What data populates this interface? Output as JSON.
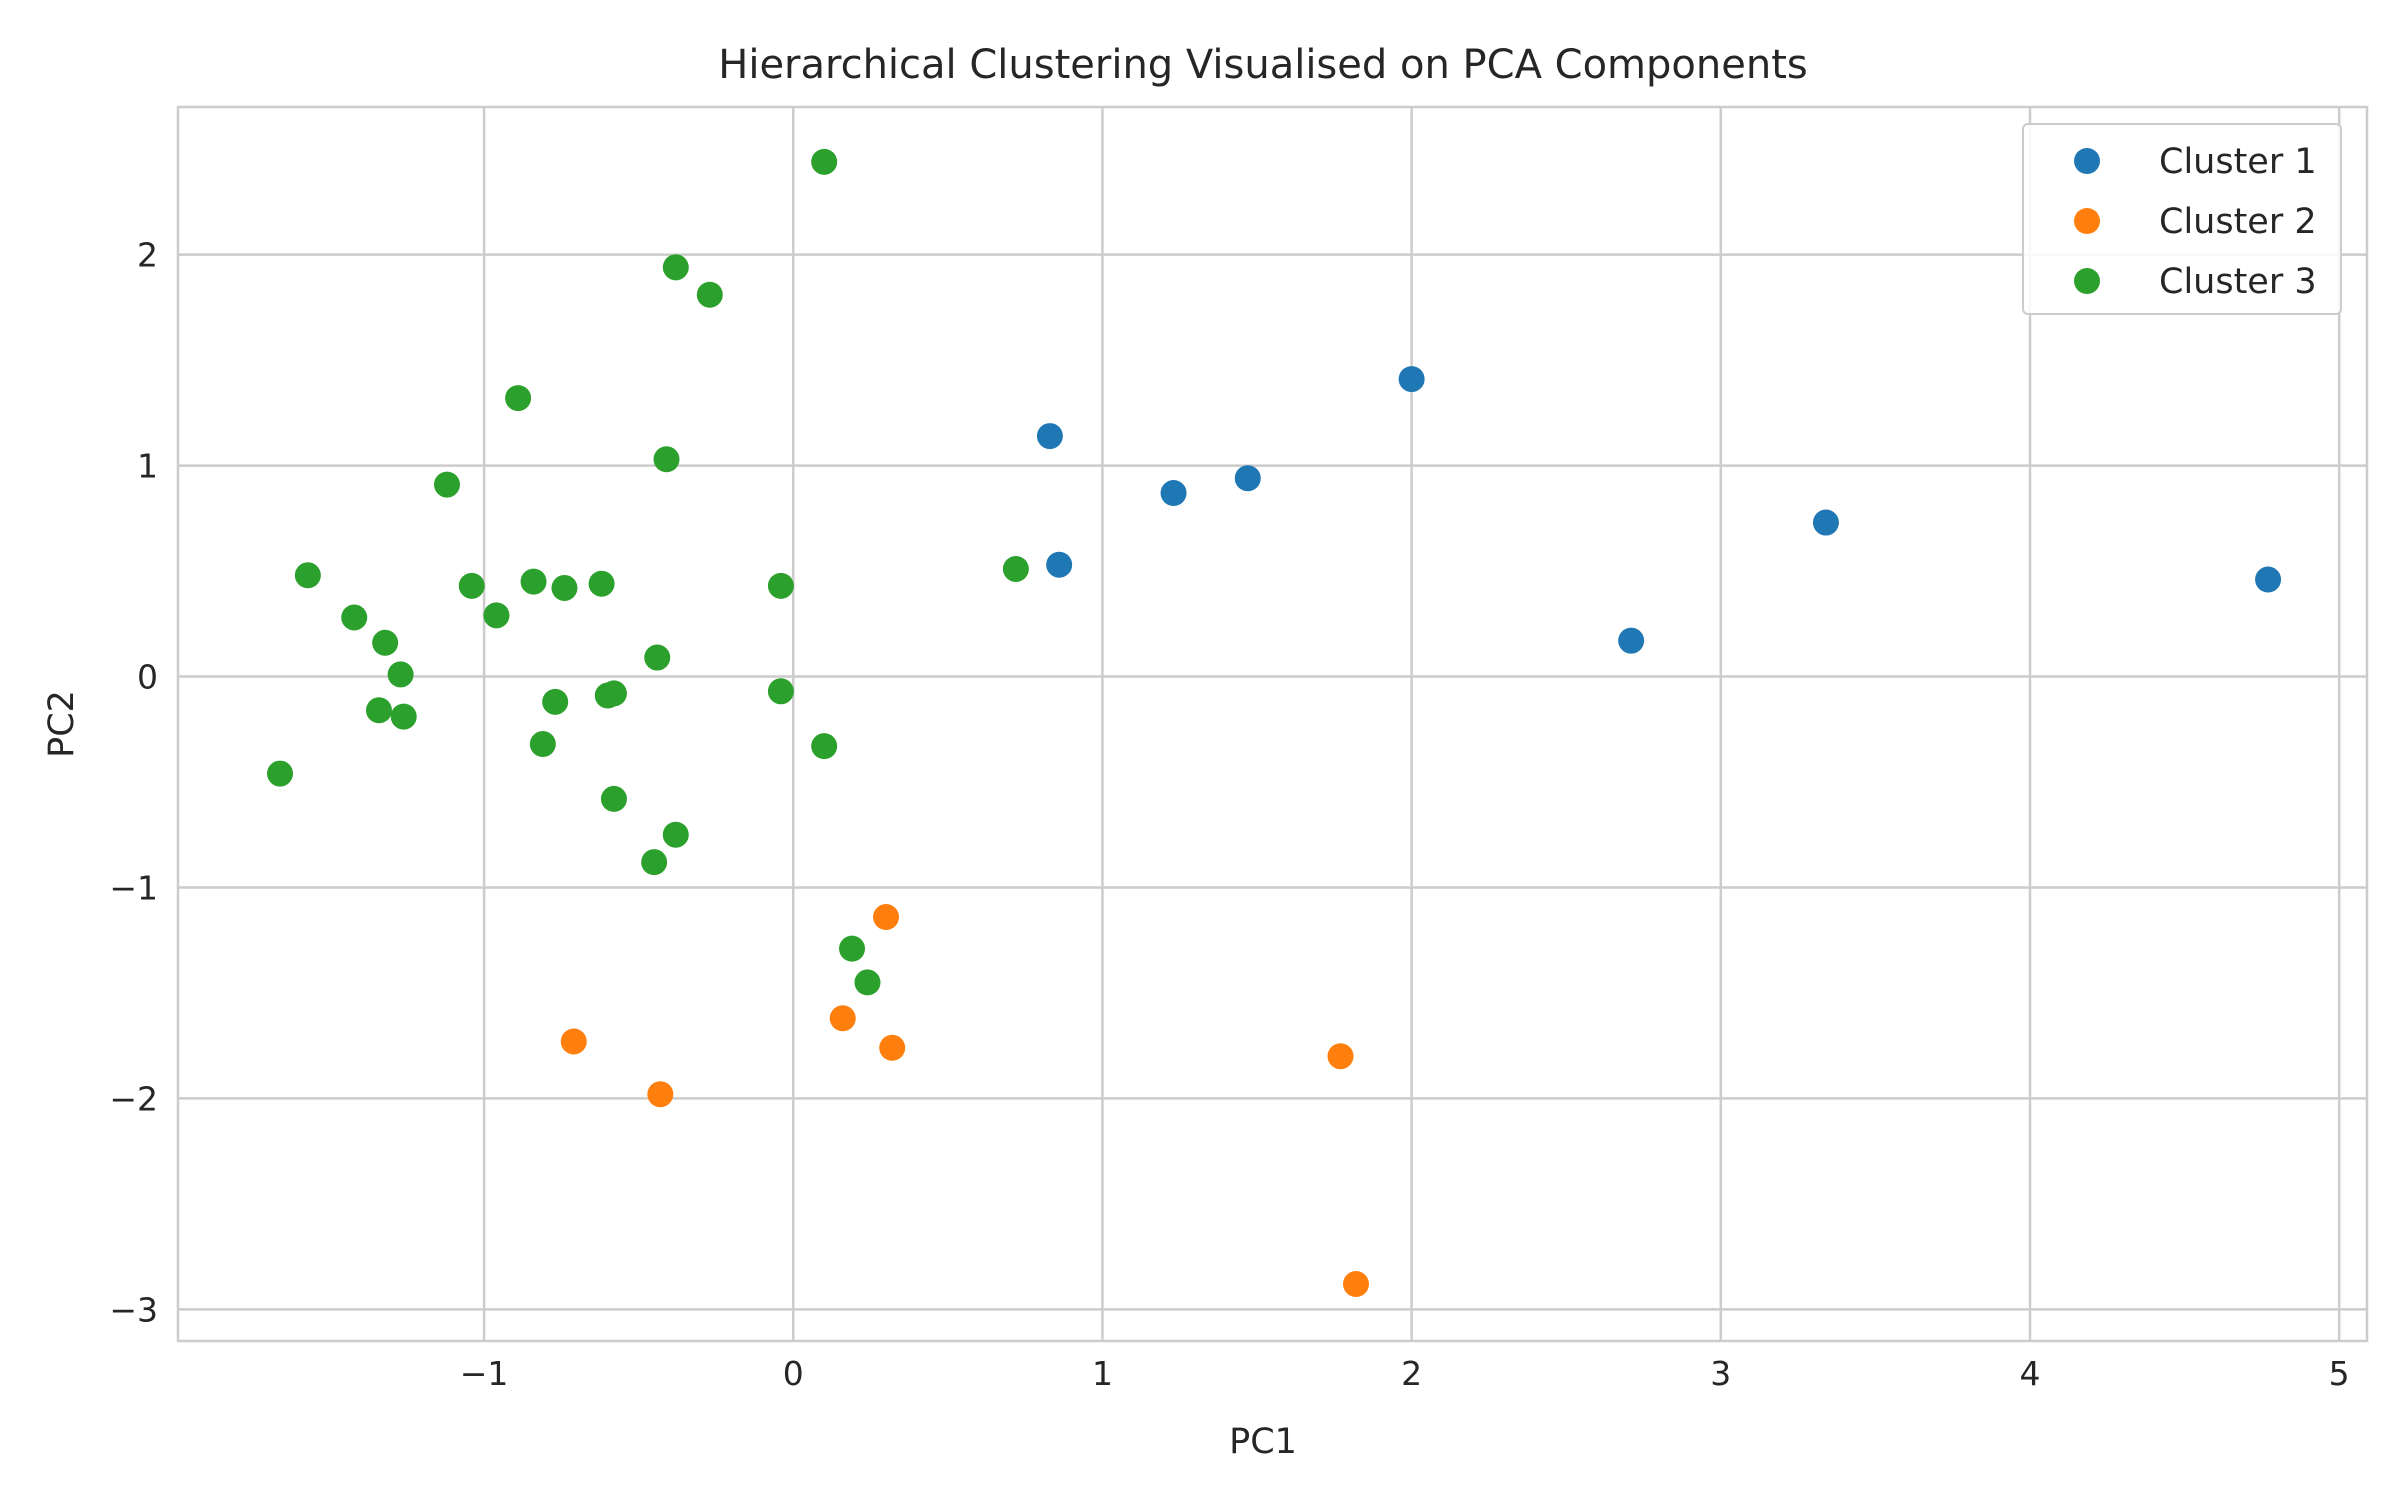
{
  "chart_data": {
    "type": "scatter",
    "title": "Hierarchical Clustering Visualised on PCA Components",
    "xlabel": "PC1",
    "ylabel": "PC2",
    "xlim": [
      -1.99,
      5.09
    ],
    "ylim": [
      -3.15,
      2.7
    ],
    "xticks": [
      -1,
      0,
      1,
      2,
      3,
      4,
      5
    ],
    "yticks": [
      -3,
      -2,
      -1,
      0,
      1,
      2
    ],
    "grid": true,
    "legend_position": "top-right",
    "series": [
      {
        "name": "Cluster 1",
        "color": "#1f77b4",
        "points": [
          [
            0.83,
            1.14
          ],
          [
            0.86,
            0.53
          ],
          [
            1.23,
            0.87
          ],
          [
            1.47,
            0.94
          ],
          [
            2.0,
            1.41
          ],
          [
            2.71,
            0.17
          ],
          [
            3.34,
            0.73
          ],
          [
            4.77,
            0.46
          ]
        ]
      },
      {
        "name": "Cluster 2",
        "color": "#ff7f0e",
        "points": [
          [
            0.3,
            -1.14
          ],
          [
            0.16,
            -1.62
          ],
          [
            0.32,
            -1.76
          ],
          [
            -0.71,
            -1.73
          ],
          [
            -0.43,
            -1.98
          ],
          [
            1.77,
            -1.8
          ],
          [
            1.82,
            -2.88
          ]
        ]
      },
      {
        "name": "Cluster 3",
        "color": "#2ca02c",
        "points": [
          [
            0.1,
            2.44
          ],
          [
            -0.38,
            1.94
          ],
          [
            -0.27,
            1.81
          ],
          [
            -0.89,
            1.32
          ],
          [
            -1.12,
            0.91
          ],
          [
            -0.41,
            1.03
          ],
          [
            -1.57,
            0.48
          ],
          [
            -1.04,
            0.43
          ],
          [
            -0.84,
            0.45
          ],
          [
            -0.74,
            0.42
          ],
          [
            -0.62,
            0.44
          ],
          [
            -0.04,
            0.43
          ],
          [
            -0.96,
            0.29
          ],
          [
            -1.42,
            0.28
          ],
          [
            -1.32,
            0.16
          ],
          [
            -1.27,
            0.01
          ],
          [
            -1.34,
            -0.16
          ],
          [
            -1.26,
            -0.19
          ],
          [
            -0.77,
            -0.12
          ],
          [
            -0.6,
            -0.09
          ],
          [
            -0.58,
            -0.08
          ],
          [
            -0.44,
            0.09
          ],
          [
            -0.04,
            -0.07
          ],
          [
            -0.81,
            -0.32
          ],
          [
            0.1,
            -0.33
          ],
          [
            -1.66,
            -0.46
          ],
          [
            -0.58,
            -0.58
          ],
          [
            -0.38,
            -0.75
          ],
          [
            -0.45,
            -0.88
          ],
          [
            0.72,
            0.51
          ],
          [
            0.19,
            -1.29
          ],
          [
            0.24,
            -1.45
          ]
        ]
      }
    ]
  }
}
